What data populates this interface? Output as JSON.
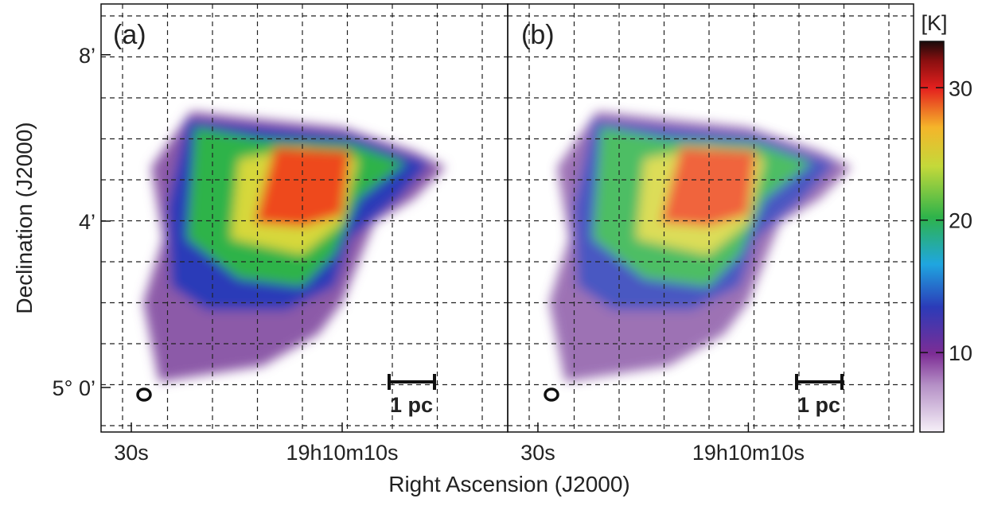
{
  "chart_data": {
    "type": "map",
    "xlabel": "Right Ascension (J2000)",
    "ylabel": "Declination (J2000)",
    "panels": [
      "(a)",
      "(b)"
    ],
    "scale_bar": "1 pc",
    "xlim": [
      32.87,
      -5.7
    ],
    "xticks": [
      30,
      {
        "value": 10,
        "label": "19h10m10s"
      }
    ],
    "xtick_labels": [
      "30s"
    ],
    "ylim": [
      -1.07,
      9.22
    ],
    "yticks": [
      {
        "value": 8,
        "label": "8’"
      },
      {
        "value": 4,
        "label": "4’"
      },
      {
        "value": 0,
        "label": "5° 0’"
      }
    ],
    "colorbar": {
      "label": "[K]",
      "lim": [
        4,
        33.5
      ],
      "ticks": [
        10,
        20,
        30
      ]
    }
  }
}
